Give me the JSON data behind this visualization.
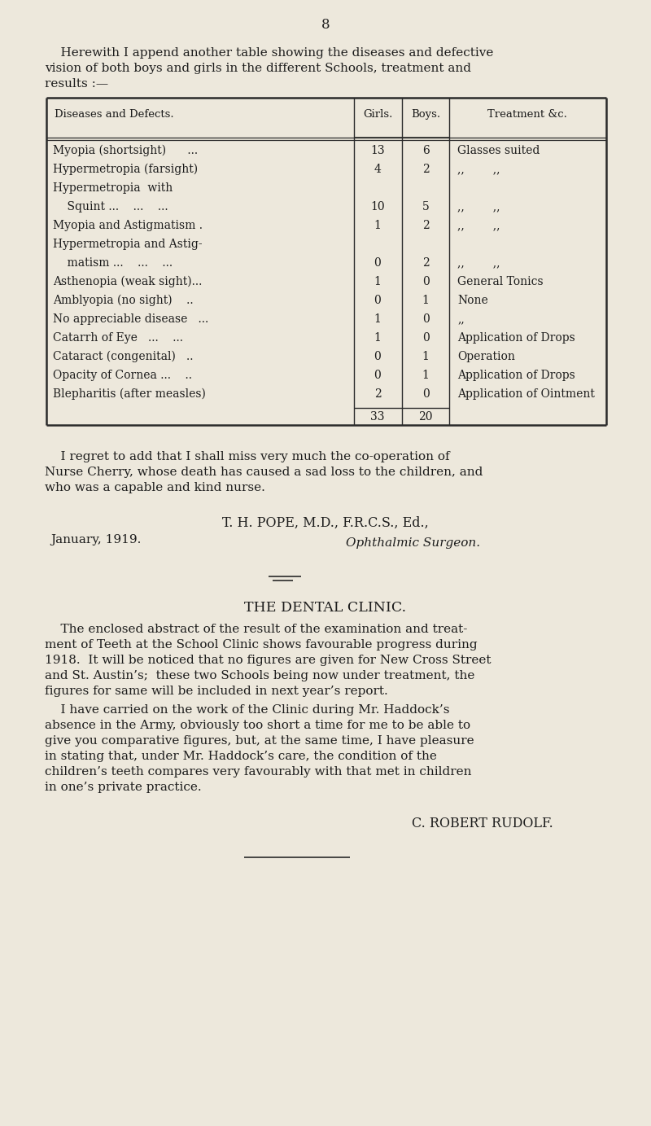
{
  "bg_color": "#ede8dc",
  "text_color": "#1c1c1c",
  "page_number": "8",
  "intro_line1": "    Herewith I append another table showing the diseases and defective",
  "intro_line2": "vision of both boys and girls in the different Schools, treatment and",
  "intro_line3": "results :—",
  "table_header_col1": "Diseases and Defects.",
  "table_header_col2": "Girls.",
  "table_header_col3": "Boys.",
  "table_header_col4": "Treatment &c.",
  "table_rows": [
    [
      "Myopia (shortsight)      ...",
      "13",
      "6",
      "Glasses suited"
    ],
    [
      "Hypermetropia (farsight)",
      "4",
      "2",
      ",,        ,,"
    ],
    [
      "Hypermetropia  with",
      "",
      "",
      ""
    ],
    [
      "    Squint ...    ...    ...",
      "10",
      "5",
      ",,        ,,"
    ],
    [
      "Myopia and Astigmatism .",
      "1",
      "2",
      ",,        ,,"
    ],
    [
      "Hypermetropia and Astig-",
      "",
      "",
      ""
    ],
    [
      "    matism ...    ...    ...",
      "0",
      "2",
      ",,        ,,"
    ],
    [
      "Asthenopia (weak sight)...",
      "1",
      "0",
      "General Tonics"
    ],
    [
      "Amblyopia (no sight)    ..",
      "0",
      "1",
      "None"
    ],
    [
      "No appreciable disease   ...",
      "1",
      "0",
      ",,"
    ],
    [
      "Catarrh of Eye   ...    ...",
      "1",
      "0",
      "Application of Drops"
    ],
    [
      "Cataract (congenital)   ..",
      "0",
      "1",
      "Operation"
    ],
    [
      "Opacity of Cornea ...    ..",
      "0",
      "1",
      "Application of Drops"
    ],
    [
      "Blepharitis (after measles)",
      "2",
      "0",
      "Application of Ointment"
    ]
  ],
  "table_totals": [
    "33",
    "20"
  ],
  "regret_line1": "    I regret to add that I shall miss very much the co-operation of",
  "regret_line2": "Nurse Cherry, whose death has caused a sad loss to the children, and",
  "regret_line3": "who was a capable and kind nurse.",
  "sig_name": "T. H. POPE, M.D., F.R.C.S., Ed.,",
  "sig_title": "Ophthalmic Surgeon.",
  "sig_date": "January, 1919.",
  "dental_title": "THE DENTAL CLINIC.",
  "dental_p1_lines": [
    "    The enclosed abstract of the result of the examination and treat-",
    "ment of Teeth at the School Clinic shows favourable progress during",
    "1918.  It will be noticed that no figures are given for New Cross Street",
    "and St. Austin’s;  these two Schools being now under treatment, the",
    "figures for same will be included in next year’s report."
  ],
  "dental_p2_lines": [
    "    I have carried on the work of the Clinic during Mr. Haddock’s",
    "absence in the Army, obviously too short a time for me to be able to",
    "give you comparative figures, but, at the same time, I have pleasure",
    "in stating that, under Mr. Haddock’s care, the condition of the",
    "children’s teeth compares very favourably with that met in children",
    "in one’s private practice."
  ],
  "dental_sig": "C. ROBERT RUDOLF."
}
